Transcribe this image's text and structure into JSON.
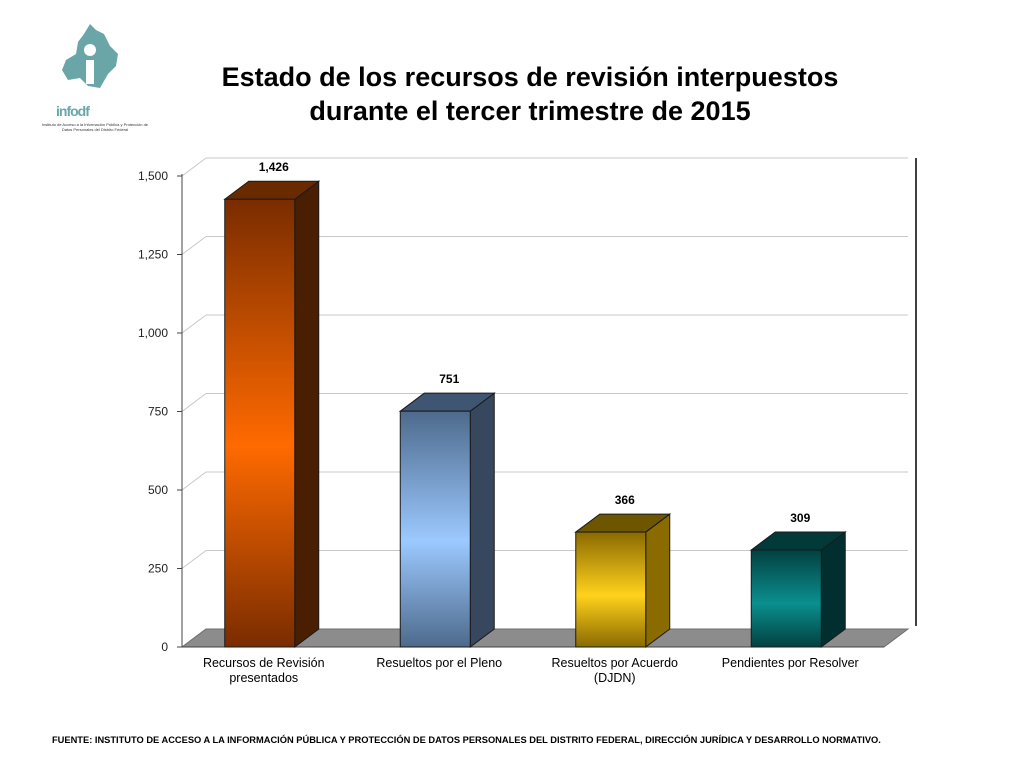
{
  "header": {
    "title_line1": "Estado de los recursos de revisión interpuestos",
    "title_line2": "durante el tercer trimestre de 2015"
  },
  "logo": {
    "word": "info",
    "word_suffix": "df",
    "subtitle": "Instituto de Acceso a la Información Pública y Protección de Datos Personales del Distrito Federal"
  },
  "chart_data": {
    "type": "bar",
    "categories": [
      [
        "Recursos de Revisión",
        "presentados"
      ],
      [
        "Resueltos por el Pleno"
      ],
      [
        "Resueltos por Acuerdo",
        "(DJDN)"
      ],
      [
        "Pendientes por Resolver"
      ]
    ],
    "values": [
      1426,
      751,
      366,
      309
    ],
    "value_labels": [
      "1,426",
      "751",
      "366",
      "309"
    ],
    "ylim": [
      0,
      1500
    ],
    "yticks": [
      0,
      250,
      500,
      750,
      1000,
      1250,
      1500
    ],
    "ytick_labels": [
      "0",
      "250",
      "500",
      "750",
      "1,000",
      "1,250",
      "1,500"
    ],
    "grid": true,
    "three_d": true,
    "colors": [
      {
        "front_light": "#ff6a00",
        "front_dark": "#7a2c00",
        "top": "#6a2a00",
        "side": "#4a1e00"
      },
      {
        "front_light": "#9cc9ff",
        "front_dark": "#4d6a8c",
        "top": "#3e5672",
        "side": "#36475e"
      },
      {
        "front_light": "#ffd21c",
        "front_dark": "#8a6a00",
        "top": "#6e5500",
        "side": "#8a6b00"
      },
      {
        "front_light": "#0a8f8f",
        "front_dark": "#034040",
        "top": "#023a3a",
        "side": "#012e2e"
      }
    ]
  },
  "footer": {
    "source": "FUENTE: INSTITUTO DE ACCESO A LA INFORMACIÓN PÚBLICA Y PROTECCIÓN DE DATOS PERSONALES DEL DISTRITO FEDERAL, DIRECCIÓN JURÍDICA Y DESARROLLO NORMATIVO."
  }
}
